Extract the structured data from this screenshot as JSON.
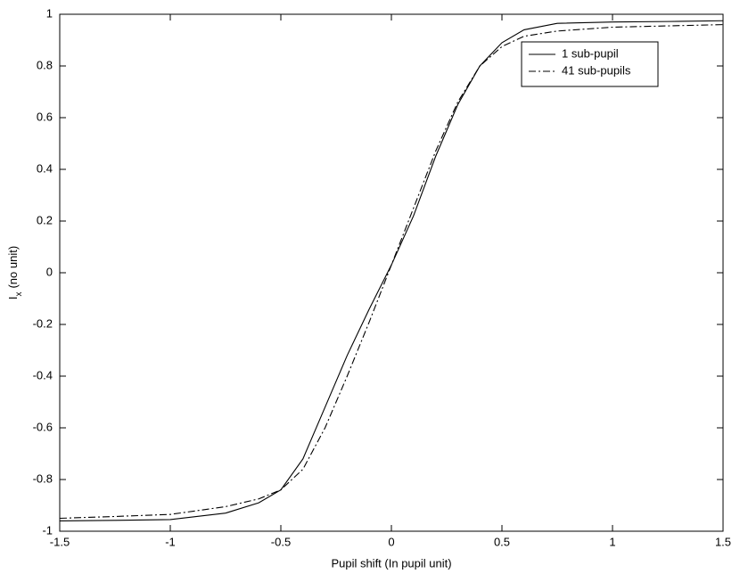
{
  "chart_data": {
    "type": "line",
    "xlabel": "Pupil shift (In pupil unit)",
    "ylabel": "I",
    "ylabel_sub": "x",
    "ylabel_rest": "(no unit)",
    "x": [
      -1.5,
      -1.25,
      -1,
      -0.75,
      -0.6,
      -0.5,
      -0.4,
      -0.3,
      -0.2,
      -0.1,
      0,
      0.1,
      0.2,
      0.3,
      0.4,
      0.5,
      0.6,
      0.75,
      1,
      1.25,
      1.5
    ],
    "series": [
      {
        "name": "1 sub-pupil",
        "color": "#000000",
        "dash": "solid",
        "values": [
          -0.96,
          -0.958,
          -0.955,
          -0.93,
          -0.89,
          -0.84,
          -0.72,
          -0.52,
          -0.32,
          -0.14,
          0.03,
          0.22,
          0.45,
          0.65,
          0.8,
          0.89,
          0.94,
          0.965,
          0.97,
          0.972,
          0.975
        ]
      },
      {
        "name": "41 sub-pupils",
        "color": "#000000",
        "dash": "dashdot",
        "values": [
          -0.95,
          -0.943,
          -0.935,
          -0.905,
          -0.875,
          -0.84,
          -0.76,
          -0.6,
          -0.4,
          -0.19,
          0.03,
          0.25,
          0.47,
          0.66,
          0.8,
          0.875,
          0.915,
          0.935,
          0.95,
          0.955,
          0.96
        ]
      }
    ],
    "xlim": [
      -1.5,
      1.5
    ],
    "xticks": [
      -1.5,
      -1,
      -0.5,
      0,
      0.5,
      1,
      1.5
    ],
    "ylim": [
      -1,
      1
    ],
    "yticks": [
      -1,
      -0.8,
      -0.6,
      -0.4,
      -0.2,
      0,
      0.2,
      0.4,
      0.6,
      0.8,
      1
    ],
    "grid": false,
    "legend": "upper right"
  }
}
